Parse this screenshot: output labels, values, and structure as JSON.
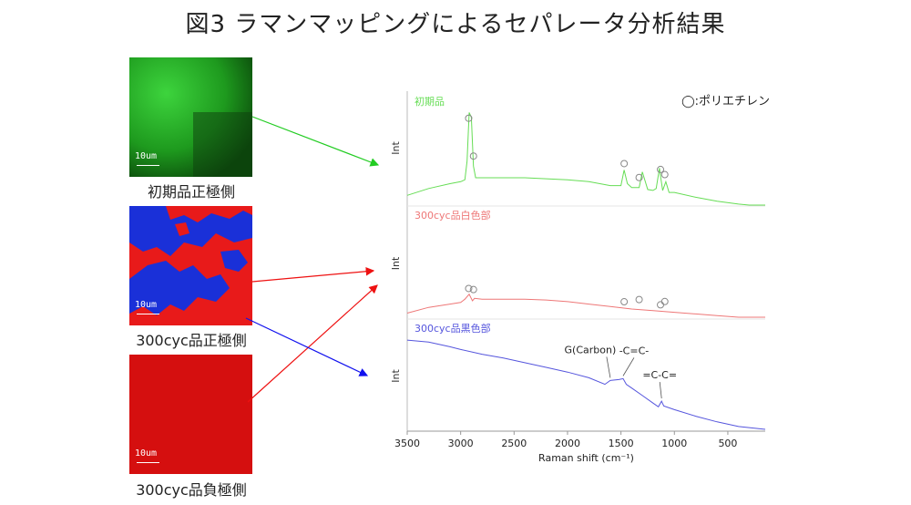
{
  "title": "図3 ラマンマッピングによるセパレータ分析結果",
  "maps": [
    {
      "caption": "初期品正極側",
      "scale": "10um",
      "color": "#22aa22"
    },
    {
      "caption": "300cyc品正極側",
      "scale": "10um",
      "color": "#ee2222"
    },
    {
      "caption": "300cyc品負極側",
      "scale": "10um",
      "color": "#dd1111"
    }
  ],
  "chart_data": {
    "type": "line",
    "xlabel": "Raman shift (cm⁻¹)",
    "ylabel": "Int",
    "xlim": [
      3500,
      150
    ],
    "xticks": [
      3500,
      3000,
      2500,
      2000,
      1500,
      1000,
      500
    ],
    "legend_note": "◯:ポリエチレン",
    "series": [
      {
        "name": "初期品",
        "color": "#66dd55",
        "x": [
          3500,
          3300,
          3100,
          3000,
          2960,
          2940,
          2920,
          2900,
          2880,
          2860,
          2800,
          2600,
          2400,
          2200,
          2000,
          1800,
          1600,
          1500,
          1470,
          1440,
          1400,
          1330,
          1300,
          1250,
          1200,
          1170,
          1140,
          1130,
          1110,
          1080,
          1050,
          1000,
          800,
          600,
          400,
          300,
          150
        ],
        "y": [
          0.1,
          0.17,
          0.22,
          0.24,
          0.26,
          0.45,
          0.95,
          0.9,
          0.4,
          0.28,
          0.28,
          0.28,
          0.28,
          0.27,
          0.26,
          0.24,
          0.2,
          0.2,
          0.36,
          0.22,
          0.18,
          0.18,
          0.34,
          0.16,
          0.15,
          0.17,
          0.38,
          0.3,
          0.15,
          0.24,
          0.13,
          0.13,
          0.08,
          0.04,
          0.01,
          0.0,
          0.0
        ]
      },
      {
        "name": "300cyc品白色部",
        "color": "#ee7777",
        "x": [
          3500,
          3300,
          3100,
          3000,
          2960,
          2920,
          2890,
          2870,
          2800,
          2600,
          2400,
          2200,
          2000,
          1800,
          1600,
          1400,
          1200,
          1000,
          800,
          600,
          400,
          300,
          150
        ],
        "y": [
          0.05,
          0.12,
          0.16,
          0.18,
          0.22,
          0.28,
          0.2,
          0.23,
          0.22,
          0.22,
          0.22,
          0.21,
          0.19,
          0.16,
          0.13,
          0.1,
          0.08,
          0.06,
          0.04,
          0.02,
          0.0,
          0.0,
          0.0
        ]
      },
      {
        "name": "300cyc品黒色部",
        "color": "#5555dd",
        "x": [
          3500,
          3300,
          3100,
          3000,
          2800,
          2600,
          2400,
          2200,
          2000,
          1800,
          1650,
          1600,
          1520,
          1480,
          1450,
          1400,
          1300,
          1200,
          1150,
          1120,
          1100,
          1000,
          800,
          600,
          400,
          150
        ],
        "y": [
          0.95,
          0.93,
          0.88,
          0.85,
          0.8,
          0.76,
          0.71,
          0.66,
          0.61,
          0.55,
          0.48,
          0.52,
          0.53,
          0.54,
          0.48,
          0.44,
          0.36,
          0.28,
          0.24,
          0.3,
          0.25,
          0.21,
          0.14,
          0.08,
          0.03,
          0.0
        ]
      }
    ],
    "markers": [
      {
        "series": 0,
        "x": [
          2925,
          2880,
          1470,
          1330,
          1130,
          1090
        ]
      },
      {
        "series": 1,
        "x": [
          2925,
          2880,
          1470,
          1330,
          1130,
          1090
        ]
      }
    ],
    "annotations": [
      {
        "series": 2,
        "text": "G(Carbon)",
        "x": 1600
      },
      {
        "series": 2,
        "text": "-C=C-",
        "x": 1480
      },
      {
        "series": 2,
        "text": "=C-C=",
        "x": 1120
      }
    ]
  }
}
